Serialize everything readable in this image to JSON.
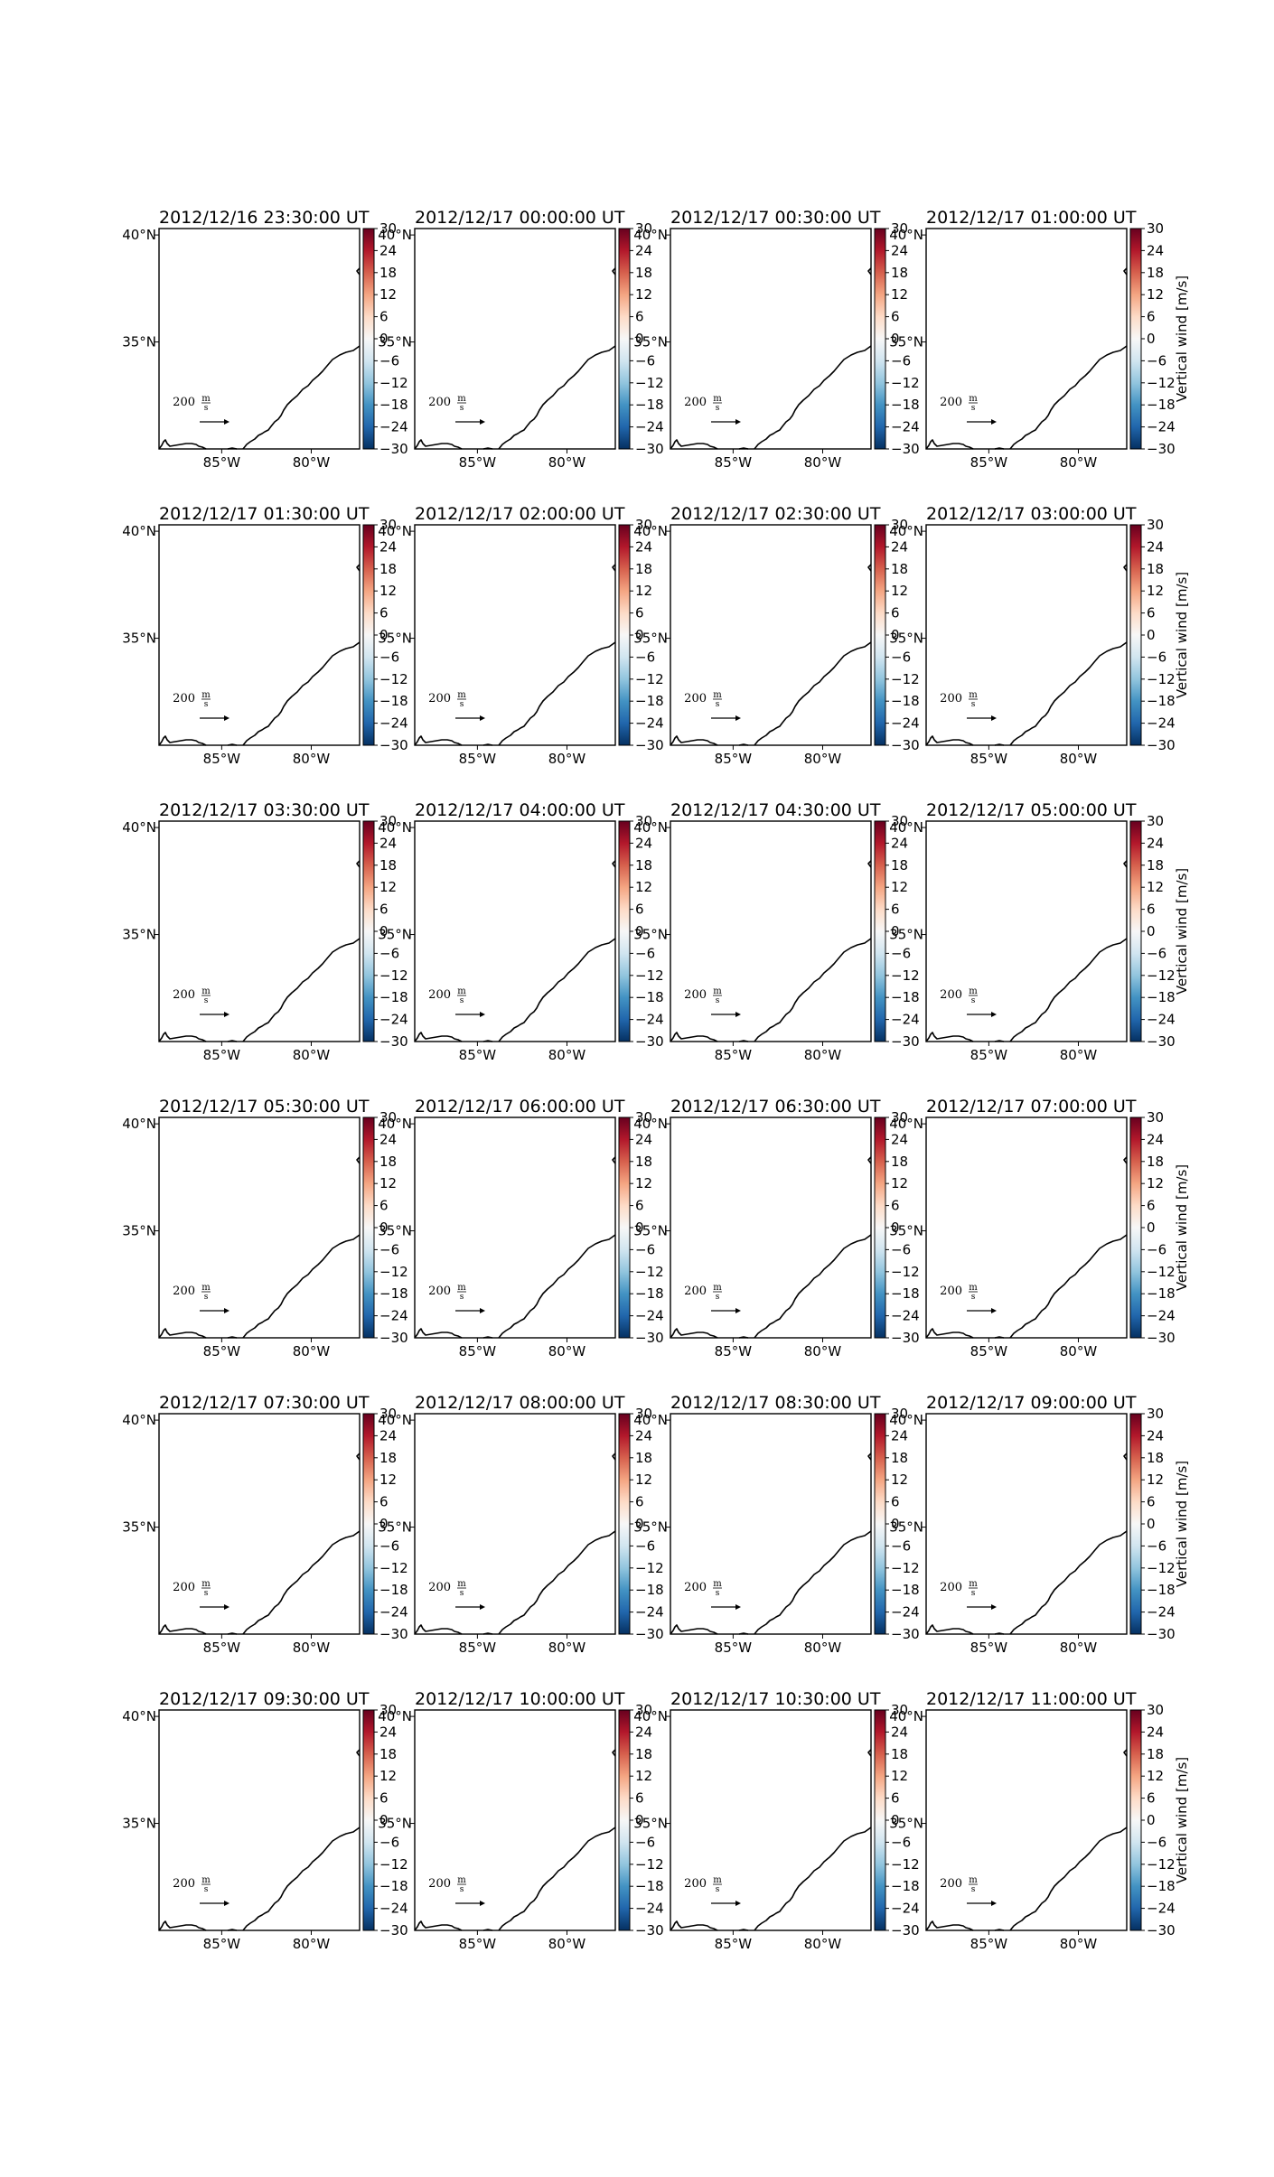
{
  "chart_data": {
    "type": "map",
    "layout": {
      "rows": 6,
      "cols": 4
    },
    "panels": [
      "2012/12/16 23:30:00 UT",
      "2012/12/17 00:00:00 UT",
      "2012/12/17 00:30:00 UT",
      "2012/12/17 01:00:00 UT",
      "2012/12/17 01:30:00 UT",
      "2012/12/17 02:00:00 UT",
      "2012/12/17 02:30:00 UT",
      "2012/12/17 03:00:00 UT",
      "2012/12/17 03:30:00 UT",
      "2012/12/17 04:00:00 UT",
      "2012/12/17 04:30:00 UT",
      "2012/12/17 05:00:00 UT",
      "2012/12/17 05:30:00 UT",
      "2012/12/17 06:00:00 UT",
      "2012/12/17 06:30:00 UT",
      "2012/12/17 07:00:00 UT",
      "2012/12/17 07:30:00 UT",
      "2012/12/17 08:00:00 UT",
      "2012/12/17 08:30:00 UT",
      "2012/12/17 09:00:00 UT",
      "2012/12/17 09:30:00 UT",
      "2012/12/17 10:00:00 UT",
      "2012/12/17 10:30:00 UT",
      "2012/12/17 11:00:00 UT"
    ],
    "lon_ticks": [
      "85°W",
      "80°W"
    ],
    "lon_tick_values": [
      -85,
      -80
    ],
    "lat_ticks": [
      "40°N",
      "35°N"
    ],
    "lat_tick_values": [
      40,
      35
    ],
    "lon_range": [
      -88.5,
      -77.3
    ],
    "lat_range": [
      30.0,
      40.3
    ],
    "quiver_key": {
      "value": "200",
      "units_top": "m",
      "units_bottom": "s"
    },
    "colorbar": {
      "label": "Vertical wind [m/s]",
      "ticks": [
        30,
        24,
        18,
        12,
        6,
        0,
        -6,
        -12,
        -18,
        -24,
        -30
      ],
      "tick_labels": [
        "30",
        "24",
        "18",
        "12",
        "6",
        "0",
        "−6",
        "−12",
        "−18",
        "−24",
        "−30"
      ],
      "range": [
        -30,
        30
      ],
      "cmap": "RdBu_r",
      "colors": [
        "#053061",
        "#2166ac",
        "#4393c3",
        "#92c5de",
        "#d1e5f0",
        "#f7f7f7",
        "#fddbc7",
        "#f4a582",
        "#d6604d",
        "#b2182b",
        "#67001f"
      ]
    },
    "grid": false
  }
}
